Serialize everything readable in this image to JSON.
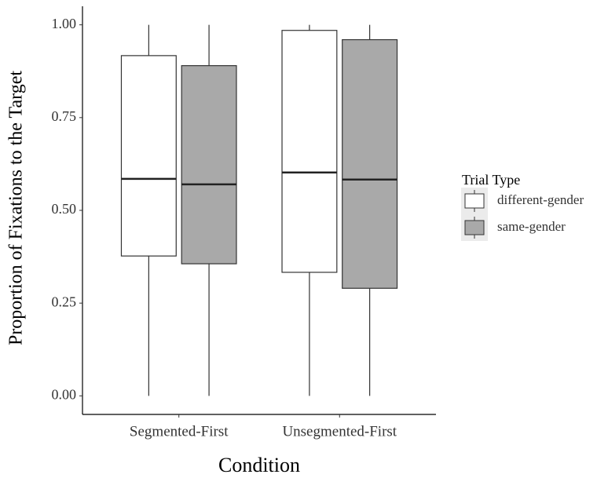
{
  "chart_data": {
    "type": "box",
    "y_label": "Proportion of Fixations to the Target",
    "x_label": "Condition",
    "categories": [
      "Segmented-First",
      "Unsegmented-First"
    ],
    "legend_title": "Trial Type",
    "legend_position": "right",
    "ylim": [
      -0.05,
      1.05
    ],
    "yticks": [
      {
        "value": 0,
        "label": "0.00"
      },
      0.25,
      {
        "value": 0.5,
        "label": "0.50"
      },
      0.75,
      {
        "value": 1,
        "label": "1.00"
      }
    ],
    "series": [
      {
        "name": "different-gender",
        "color": "#ffffff",
        "min": [
          0,
          0
        ],
        "q1": [
          0.377,
          0.333
        ],
        "median": [
          0.585,
          0.602
        ],
        "q3": [
          0.917,
          0.985
        ],
        "max": [
          1,
          1
        ]
      },
      {
        "name": "same-gender",
        "color": "#a9a9a9",
        "min": [
          0,
          0
        ],
        "q1": [
          0.356,
          0.29
        ],
        "median": [
          0.57,
          0.583
        ],
        "q3": [
          0.89,
          0.96
        ],
        "max": [
          1,
          1
        ]
      }
    ]
  }
}
